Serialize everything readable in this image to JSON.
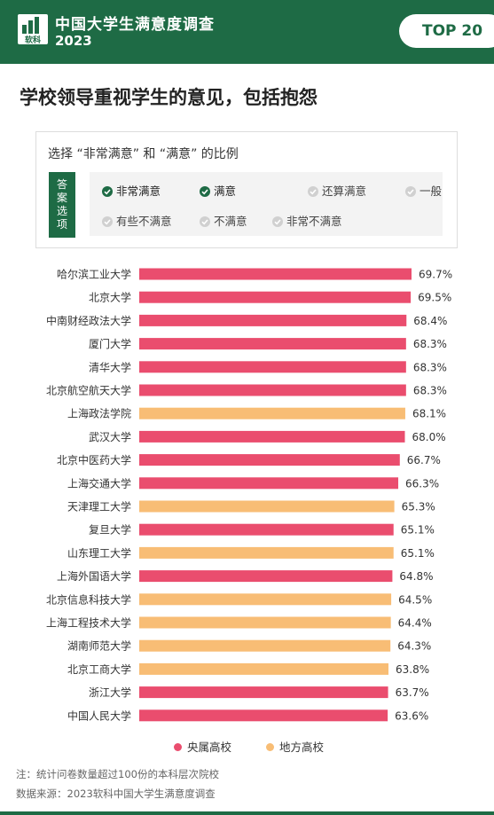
{
  "header": {
    "brand": "中国大学生满意度调查",
    "year": "2023",
    "logo_text": "软科",
    "badge": "TOP 20"
  },
  "title": "学校领导重视学生的意见，包括抱怨",
  "options": {
    "heading": "选择 “非常满意” 和 “满意” 的比例",
    "answer_label": "答案选项",
    "items": [
      {
        "label": "非常满意",
        "selected": true
      },
      {
        "label": "满意",
        "selected": true
      },
      {
        "label": "还算满意",
        "selected": false
      },
      {
        "label": "一般",
        "selected": false
      },
      {
        "label": "有些不满意",
        "selected": false
      },
      {
        "label": "不满意",
        "selected": false
      },
      {
        "label": "非常不满意",
        "selected": false
      }
    ]
  },
  "chart_data": {
    "type": "bar",
    "orientation": "horizontal",
    "categories": [
      "哈尔滨工业大学",
      "北京大学",
      "中南财经政法大学",
      "厦门大学",
      "清华大学",
      "北京航空航天大学",
      "上海政法学院",
      "武汉大学",
      "北京中医药大学",
      "上海交通大学",
      "天津理工大学",
      "复旦大学",
      "山东理工大学",
      "上海外国语大学",
      "北京信息科技大学",
      "上海工程技术大学",
      "湖南师范大学",
      "北京工商大学",
      "浙江大学",
      "中国人民大学"
    ],
    "values": [
      69.7,
      69.5,
      68.4,
      68.3,
      68.3,
      68.3,
      68.1,
      68.0,
      66.7,
      66.3,
      65.3,
      65.1,
      65.1,
      64.8,
      64.5,
      64.4,
      64.3,
      63.8,
      63.7,
      63.6
    ],
    "value_labels": [
      "69.7%",
      "69.5%",
      "68.4%",
      "68.3%",
      "68.3%",
      "68.3%",
      "68.1%",
      "68.0%",
      "66.7%",
      "66.3%",
      "65.3%",
      "65.1%",
      "65.1%",
      "64.8%",
      "64.5%",
      "64.4%",
      "64.3%",
      "63.8%",
      "63.7%",
      "63.6%"
    ],
    "groups": [
      "central",
      "central",
      "central",
      "central",
      "central",
      "central",
      "local",
      "central",
      "central",
      "central",
      "local",
      "central",
      "local",
      "central",
      "local",
      "local",
      "local",
      "local",
      "central",
      "central"
    ],
    "legend": [
      {
        "key": "central",
        "name": "央属高校",
        "color": "#ea4d6e"
      },
      {
        "key": "local",
        "name": "地方高校",
        "color": "#f8bd75"
      }
    ],
    "legend_position": "bottom",
    "grid": false
  },
  "notes": {
    "note1": "注：统计问卷数量超过100份的本科层次院校",
    "note2": "数据来源：2023软科中国大学生满意度调查"
  },
  "colors": {
    "brand_green": "#1e6b45",
    "check_selected": "#1e6b45",
    "check_unselected": "#d0d0d0"
  }
}
